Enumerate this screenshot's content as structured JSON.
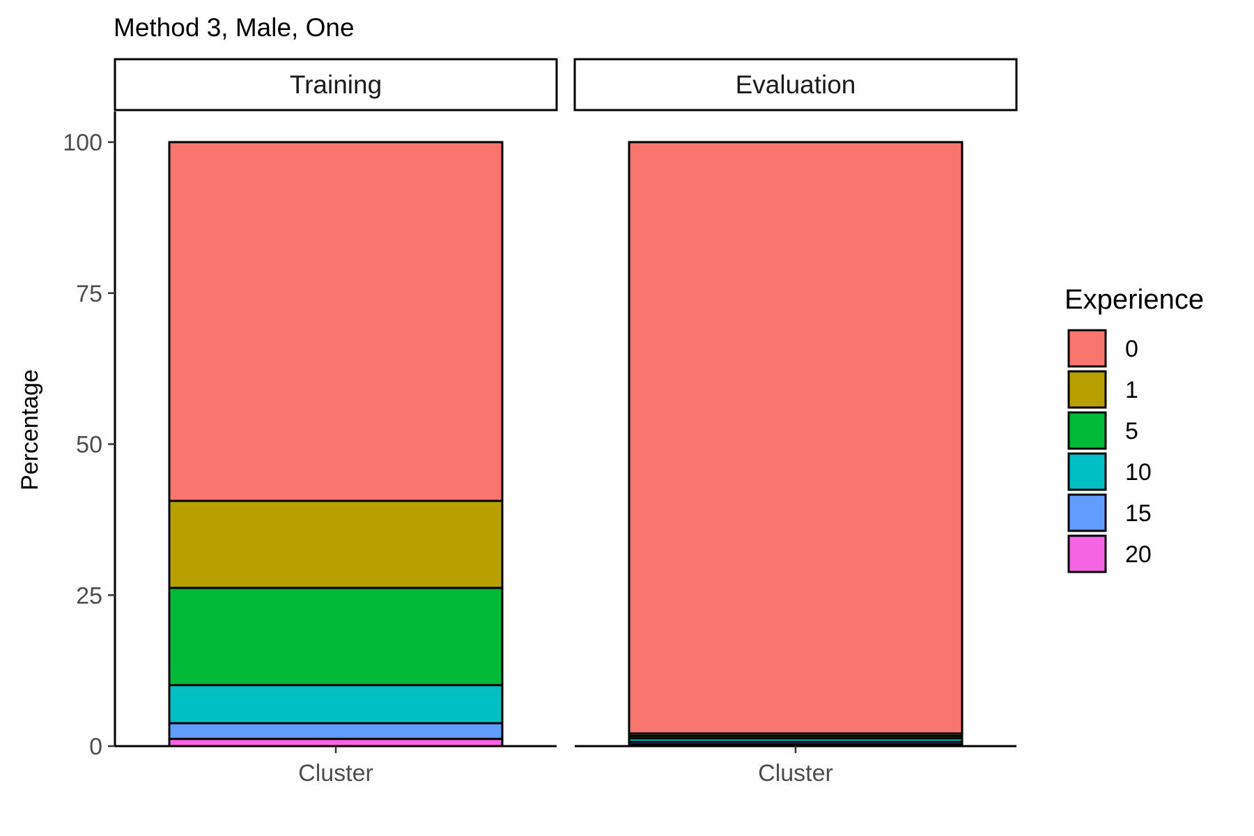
{
  "chart_data": {
    "type": "bar",
    "stacked": true,
    "title": "Method 3, Male, One",
    "ylabel": "Percentage",
    "ylim": [
      0,
      100
    ],
    "yticks": [
      0,
      25,
      50,
      75,
      100
    ],
    "grid": false,
    "legend": {
      "title": "Experience",
      "placement": "right",
      "entries": [
        "0",
        "1",
        "5",
        "10",
        "15",
        "20"
      ]
    },
    "colors": {
      "0": "#F8766D",
      "1": "#B79F00",
      "5": "#00BA38",
      "10": "#00BFC4",
      "15": "#619CFF",
      "20": "#F564E3"
    },
    "panels": [
      {
        "strip": "Training",
        "categories": [
          "Cluster"
        ],
        "segments": [
          {
            "level": "20",
            "value": 1.2
          },
          {
            "level": "15",
            "value": 2.6
          },
          {
            "level": "10",
            "value": 6.3
          },
          {
            "level": "5",
            "value": 16.1
          },
          {
            "level": "1",
            "value": 14.4
          },
          {
            "level": "0",
            "value": 59.4
          }
        ]
      },
      {
        "strip": "Evaluation",
        "categories": [
          "Cluster"
        ],
        "segments": [
          {
            "level": "20",
            "value": 0.3
          },
          {
            "level": "15",
            "value": 0.4
          },
          {
            "level": "10",
            "value": 0.6
          },
          {
            "level": "5",
            "value": 0.4
          },
          {
            "level": "1",
            "value": 0.4
          },
          {
            "level": "0",
            "value": 97.9
          }
        ]
      }
    ]
  }
}
